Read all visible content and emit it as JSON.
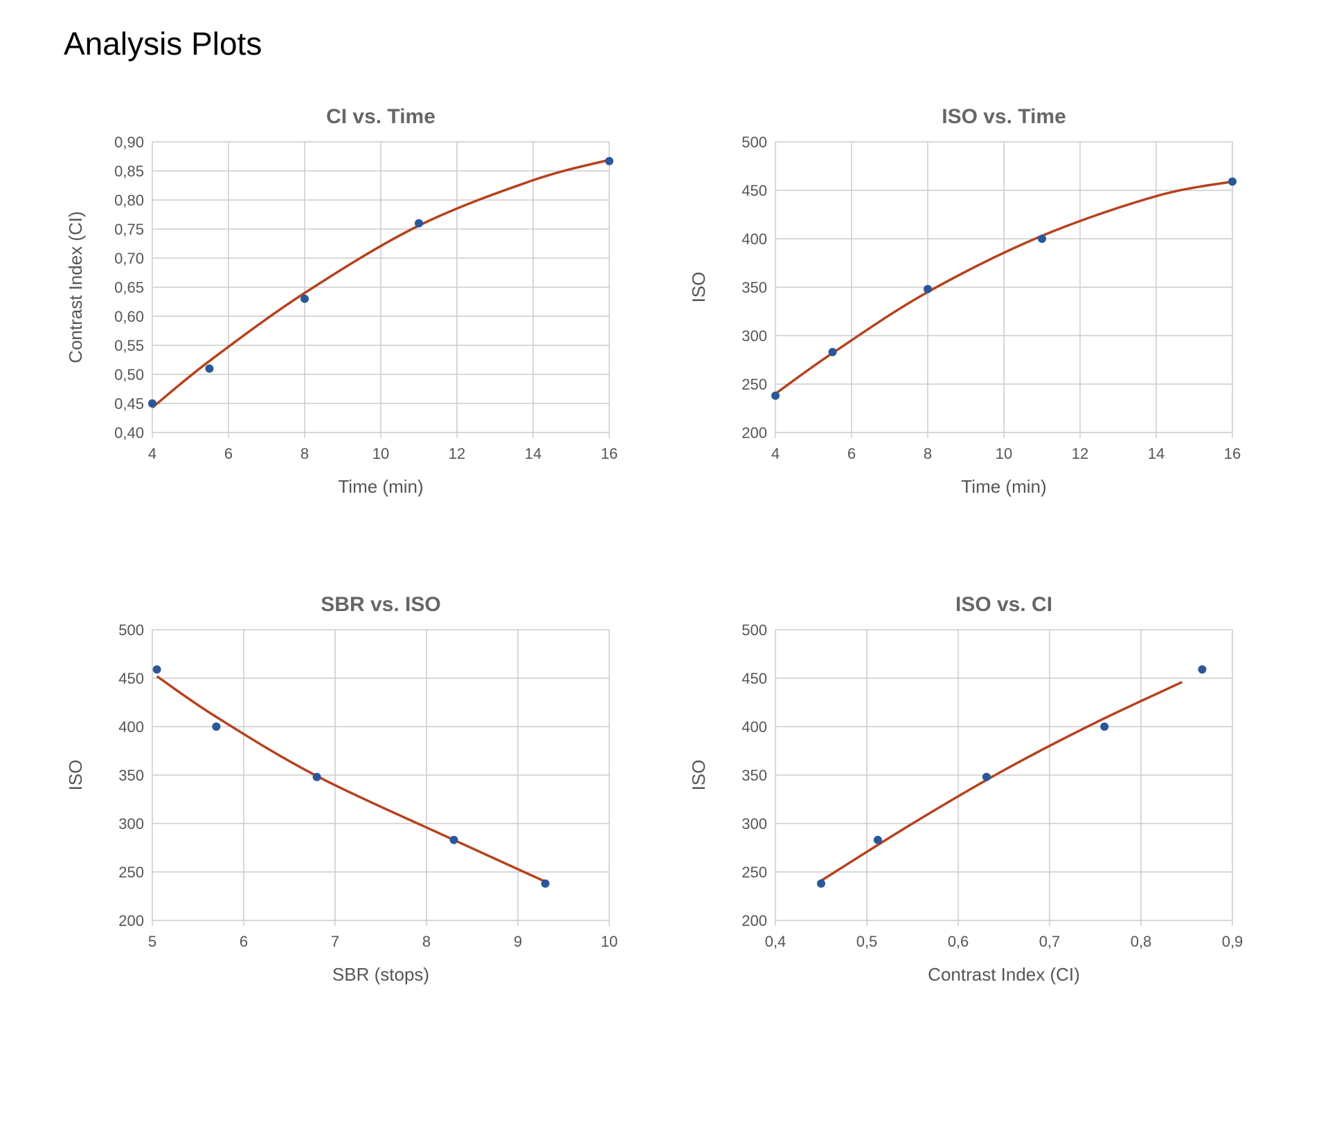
{
  "page": {
    "title": "Analysis Plots"
  },
  "colors": {
    "fit": "#b5421e",
    "points": "#2a579a",
    "grid": "#cccccc",
    "title": "#666666",
    "text": "#555555"
  },
  "chart_data": [
    {
      "id": "ci-time",
      "type": "scatter",
      "title": "CI vs. Time",
      "xlabel": "Time (min)",
      "ylabel": "Contrast Index (CI)",
      "xlim": [
        4,
        16
      ],
      "ylim": [
        0.4,
        0.9
      ],
      "xticks": [
        4,
        6,
        8,
        10,
        12,
        14,
        16
      ],
      "xtick_labels": [
        "4",
        "6",
        "8",
        "10",
        "12",
        "14",
        "16"
      ],
      "yticks": [
        0.4,
        0.45,
        0.5,
        0.55,
        0.6,
        0.65,
        0.7,
        0.75,
        0.8,
        0.85,
        0.9
      ],
      "ytick_labels": [
        "0,40",
        "0,45",
        "0,50",
        "0,55",
        "0,60",
        "0,65",
        "0,70",
        "0,75",
        "0,80",
        "0,85",
        "0,90"
      ],
      "grid": true,
      "points": {
        "x": [
          4,
          5.5,
          8,
          11,
          16
        ],
        "y": [
          0.45,
          0.51,
          0.63,
          0.76,
          0.867
        ]
      },
      "fit": {
        "x": [
          4,
          5.5,
          8,
          11,
          14,
          16
        ],
        "y": [
          0.443,
          0.523,
          0.64,
          0.756,
          0.834,
          0.869
        ]
      }
    },
    {
      "id": "iso-time",
      "type": "scatter",
      "title": "ISO vs. Time",
      "xlabel": "Time (min)",
      "ylabel": "ISO",
      "xlim": [
        4,
        16
      ],
      "ylim": [
        200,
        500
      ],
      "xticks": [
        4,
        6,
        8,
        10,
        12,
        14,
        16
      ],
      "xtick_labels": [
        "4",
        "6",
        "8",
        "10",
        "12",
        "14",
        "16"
      ],
      "yticks": [
        200,
        250,
        300,
        350,
        400,
        450,
        500
      ],
      "ytick_labels": [
        "200",
        "250",
        "300",
        "350",
        "400",
        "450",
        "500"
      ],
      "grid": true,
      "points": {
        "x": [
          4,
          5.5,
          8,
          11,
          16
        ],
        "y": [
          238,
          283,
          348,
          400,
          459
        ]
      },
      "fit": {
        "x": [
          4,
          5.5,
          8,
          11,
          14,
          16
        ],
        "y": [
          240,
          282,
          345,
          403,
          444,
          459
        ]
      }
    },
    {
      "id": "sbr-iso",
      "type": "scatter",
      "title": "SBR vs. ISO",
      "xlabel": "SBR (stops)",
      "ylabel": "ISO",
      "xlim": [
        5,
        10
      ],
      "ylim": [
        200,
        500
      ],
      "xticks": [
        5,
        6,
        7,
        8,
        9,
        10
      ],
      "xtick_labels": [
        "5",
        "6",
        "7",
        "8",
        "9",
        "10"
      ],
      "yticks": [
        200,
        250,
        300,
        350,
        400,
        450,
        500
      ],
      "ytick_labels": [
        "200",
        "250",
        "300",
        "350",
        "400",
        "450",
        "500"
      ],
      "grid": true,
      "points": {
        "x": [
          5.05,
          5.7,
          6.8,
          8.3,
          9.3
        ],
        "y": [
          459,
          400,
          348,
          283,
          238
        ]
      },
      "fit": {
        "x": [
          5.05,
          5.7,
          6.8,
          8.3,
          9.3
        ],
        "y": [
          452,
          410,
          349,
          283,
          240
        ]
      }
    },
    {
      "id": "iso-ci",
      "type": "scatter",
      "title": "ISO vs. CI",
      "xlabel": "Contrast Index (CI)",
      "ylabel": "ISO",
      "xlim": [
        0.4,
        0.9
      ],
      "ylim": [
        200,
        500
      ],
      "xticks": [
        0.4,
        0.5,
        0.6,
        0.7,
        0.8,
        0.9
      ],
      "xtick_labels": [
        "0,4",
        "0,5",
        "0,6",
        "0,7",
        "0,8",
        "0,9"
      ],
      "yticks": [
        200,
        250,
        300,
        350,
        400,
        450,
        500
      ],
      "ytick_labels": [
        "200",
        "250",
        "300",
        "350",
        "400",
        "450",
        "500"
      ],
      "grid": true,
      "points": {
        "x": [
          0.45,
          0.512,
          0.631,
          0.76,
          0.867
        ],
        "y": [
          238,
          283,
          348,
          400,
          459
        ]
      },
      "fit": {
        "x": [
          0.45,
          0.55,
          0.65,
          0.75,
          0.845
        ],
        "y": [
          241,
          300,
          355,
          404,
          446
        ]
      }
    }
  ]
}
